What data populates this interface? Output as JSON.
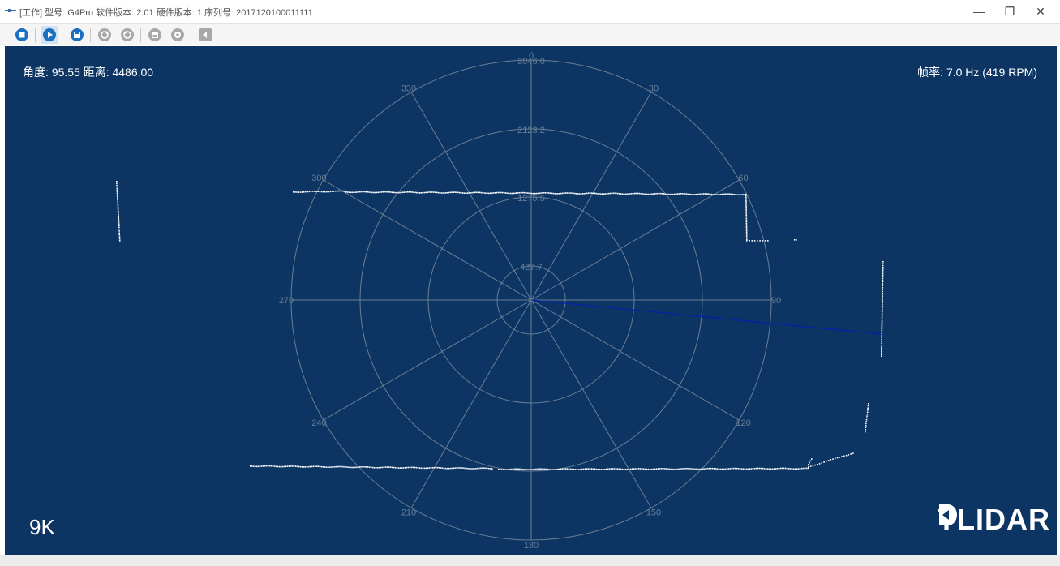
{
  "window": {
    "title": "[工作] 型号: G4Pro 软件版本: 2.01 硬件版本: 1 序列号: 2017120100011111",
    "minimize_glyph": "—",
    "restore_glyph": "❐",
    "close_glyph": "✕"
  },
  "toolbar": {
    "buttons": [
      {
        "name": "stop-icon",
        "active": false
      },
      {
        "name": "play-icon",
        "active": true
      },
      {
        "name": "save-icon",
        "active": false
      },
      {
        "name": "rotate-cw-icon",
        "active": false
      },
      {
        "name": "rotate-ccw-icon",
        "active": false
      },
      {
        "name": "disk-icon",
        "active": false
      },
      {
        "name": "settings-icon",
        "active": false
      },
      {
        "name": "export-icon",
        "active": false
      }
    ]
  },
  "readout": {
    "angle_distance": "角度: 95.55 距离: 4486.00",
    "frame_rate": "帧率: 7.0 Hz (419 RPM)",
    "sample_rate": "9K"
  },
  "polar": {
    "ring_labels": [
      "427.7",
      "1275.5",
      "2123.2",
      "3046.0"
    ],
    "angle_labels": [
      "0",
      "30",
      "60",
      "90",
      "120",
      "150",
      "180",
      "210",
      "240",
      "270",
      "300",
      "330"
    ],
    "pointer_angle": 95.55,
    "pointer_distance": 4486.0
  },
  "logo": {
    "left": "Y",
    "right": "LIDAR"
  },
  "colors": {
    "background": "#0c3564",
    "grid": "#6b7f94",
    "points": "#ffffff",
    "pointer": "#0a1fa8",
    "active_button": "#cfe3f5"
  }
}
